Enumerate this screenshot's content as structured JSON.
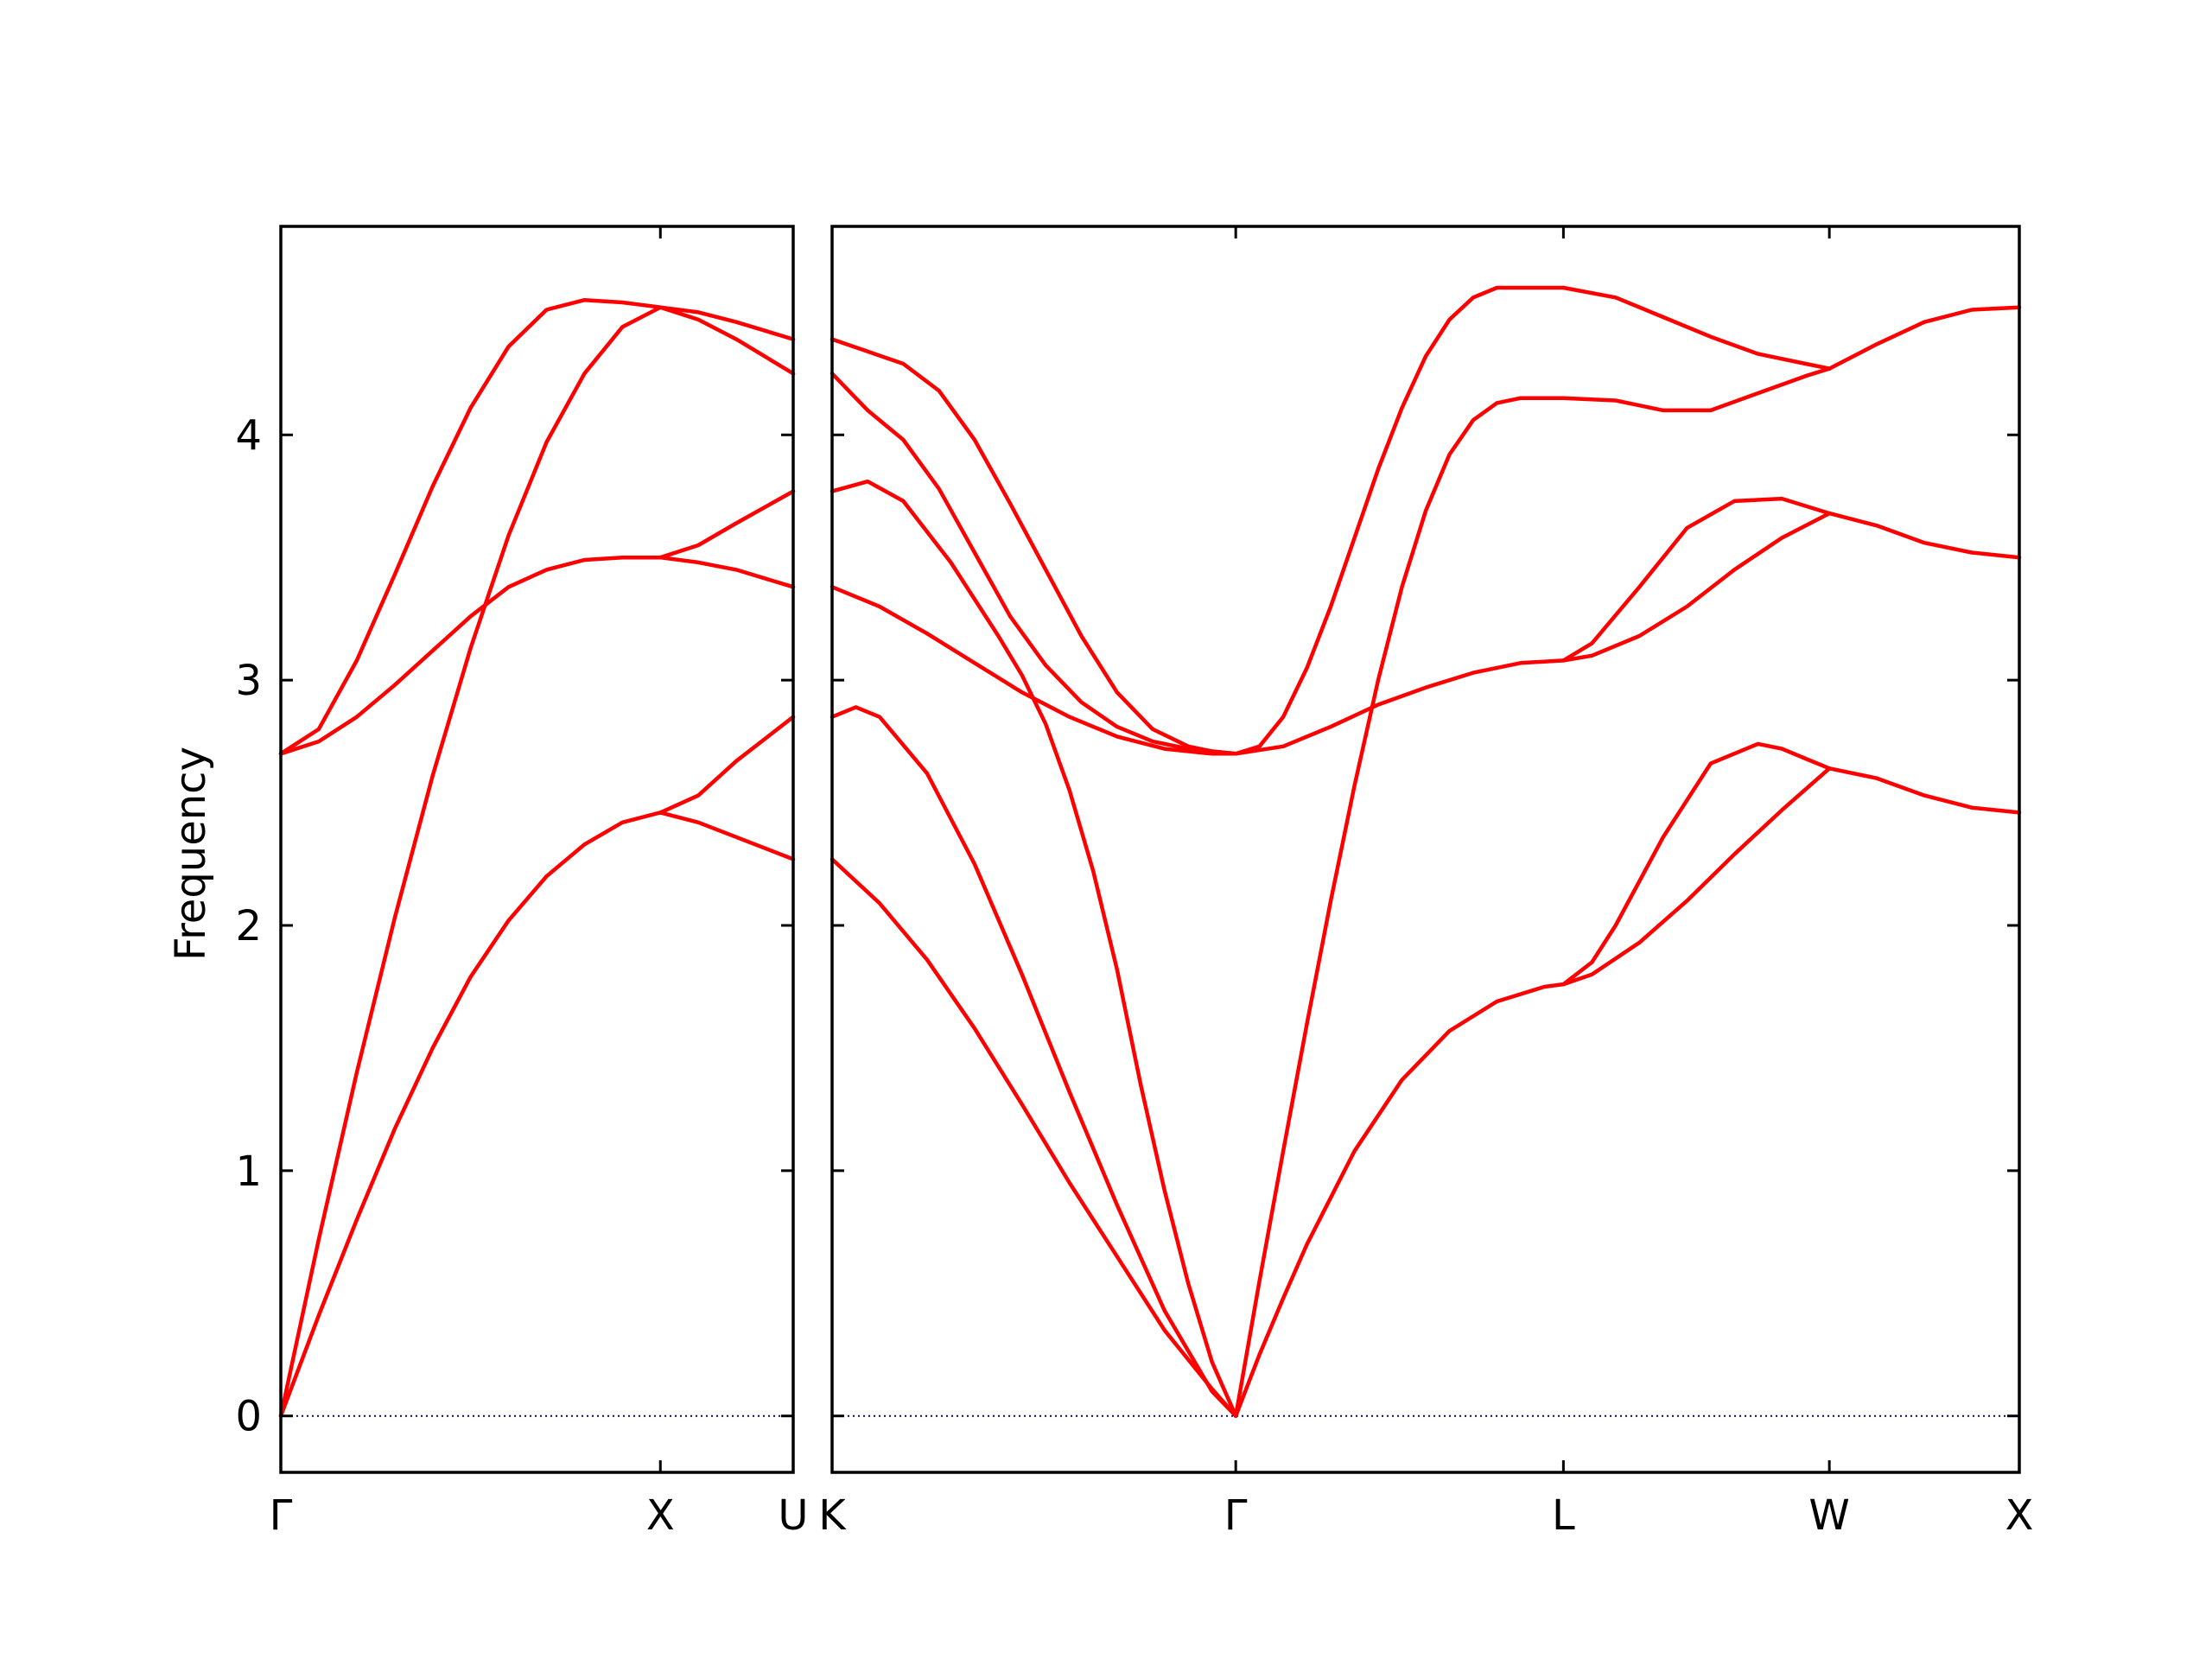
{
  "chart_data": {
    "type": "line",
    "title": "",
    "ylabel": "Frequency",
    "ylim": [
      -0.23,
      4.85
    ],
    "yticks": [
      0,
      1,
      2,
      3,
      4
    ],
    "grid": false,
    "colors": {
      "bands": "#ff0000",
      "zero_line": "#00008b",
      "frame": "#000000"
    },
    "panels": [
      {
        "name": "Γ-X-U",
        "xlim": [
          0,
          1.35
        ],
        "kpoints": [
          {
            "label": "Γ",
            "x": 0
          },
          {
            "label": "X",
            "x": 1.0
          },
          {
            "label": "U",
            "x": 1.35
          }
        ],
        "kpoint_label_text": "Γ X U",
        "series": [
          {
            "x": [
              0,
              0.1,
              0.2,
              0.3,
              0.4,
              0.5,
              0.6,
              0.7,
              0.8,
              0.9,
              1.0,
              1.1,
              1.2,
              1.35
            ],
            "y": [
              0,
              0.41,
              0.8,
              1.17,
              1.5,
              1.79,
              2.02,
              2.2,
              2.33,
              2.42,
              2.46,
              2.42,
              2.36,
              2.27
            ]
          },
          {
            "x": [
              0,
              0.1,
              0.2,
              0.3,
              0.4,
              0.5,
              0.6,
              0.7,
              0.8,
              0.9,
              1.0,
              1.1,
              1.2,
              1.35
            ],
            "y": [
              0,
              0.72,
              1.4,
              2.03,
              2.61,
              3.13,
              3.59,
              3.97,
              4.25,
              4.44,
              4.52,
              4.47,
              4.39,
              4.25
            ]
          },
          {
            "x": [
              0,
              0.1,
              0.2,
              0.3,
              0.4,
              0.5,
              0.6,
              0.7,
              0.8,
              0.9,
              1.0,
              1.1,
              1.2,
              1.35
            ],
            "y": [
              2.7,
              2.75,
              2.85,
              2.98,
              3.12,
              3.26,
              3.38,
              3.45,
              3.49,
              3.5,
              3.5,
              3.48,
              3.45,
              3.38
            ]
          },
          {
            "x": [
              0,
              0.1,
              0.2,
              0.3,
              0.4,
              0.5,
              0.6,
              0.7,
              0.8,
              0.9,
              0.95,
              1.0,
              1.1,
              1.2,
              1.35
            ],
            "y": [
              2.7,
              2.8,
              3.08,
              3.43,
              3.79,
              4.11,
              4.36,
              4.51,
              4.55,
              4.54,
              4.53,
              4.52,
              4.5,
              4.46,
              4.39
            ]
          },
          {
            "x": [
              1.0,
              1.1,
              1.2,
              1.35
            ],
            "y": [
              2.46,
              2.53,
              2.67,
              2.85
            ]
          },
          {
            "x": [
              1.0,
              1.1,
              1.2,
              1.35
            ],
            "y": [
              3.5,
              3.55,
              3.64,
              3.77
            ]
          }
        ]
      },
      {
        "name": "K-Γ-L-W-X",
        "xlim": [
          0,
          5.0
        ],
        "kpoints": [
          {
            "label": "K",
            "x": 0
          },
          {
            "label": "Γ",
            "x": 1.7
          },
          {
            "label": "L",
            "x": 3.08
          },
          {
            "label": "W",
            "x": 4.2
          },
          {
            "label": "X",
            "x": 5.0
          }
        ],
        "series": [
          {
            "x": [
              0,
              0.2,
              0.4,
              0.6,
              0.8,
              1.0,
              1.2,
              1.4,
              1.6,
              1.7
            ],
            "y": [
              2.27,
              2.09,
              1.86,
              1.58,
              1.27,
              0.95,
              0.65,
              0.35,
              0.11,
              0
            ]
          },
          {
            "x": [
              0,
              0.1,
              0.2,
              0.4,
              0.6,
              0.8,
              1.0,
              1.2,
              1.4,
              1.6,
              1.7
            ],
            "y": [
              2.85,
              2.89,
              2.85,
              2.62,
              2.25,
              1.8,
              1.32,
              0.86,
              0.43,
              0.1,
              0
            ]
          },
          {
            "x": [
              0,
              0.15,
              0.3,
              0.5,
              0.7,
              0.8,
              0.9,
              1.0,
              1.1,
              1.2,
              1.3,
              1.4,
              1.5,
              1.6,
              1.7
            ],
            "y": [
              3.77,
              3.81,
              3.73,
              3.48,
              3.18,
              3.02,
              2.82,
              2.55,
              2.22,
              1.82,
              1.35,
              0.92,
              0.54,
              0.22,
              0
            ]
          },
          {
            "x": [
              0,
              0.2,
              0.4,
              0.6,
              0.8,
              1.0,
              1.2,
              1.4,
              1.6,
              1.7,
              1.9,
              2.1,
              2.3,
              2.5,
              2.7,
              2.9,
              3.08
            ],
            "y": [
              3.38,
              3.3,
              3.19,
              3.07,
              2.95,
              2.85,
              2.77,
              2.72,
              2.7,
              2.7,
              2.73,
              2.81,
              2.9,
              2.97,
              3.03,
              3.07,
              3.08
            ]
          },
          {
            "x": [
              0,
              0.15,
              0.3,
              0.45,
              0.6,
              0.75,
              0.9,
              1.05,
              1.2,
              1.35,
              1.5,
              1.6,
              1.7
            ],
            "y": [
              4.25,
              4.1,
              3.98,
              3.78,
              3.52,
              3.26,
              3.06,
              2.91,
              2.81,
              2.75,
              2.72,
              2.71,
              2.7
            ]
          },
          {
            "x": [
              0,
              0.15,
              0.3,
              0.45,
              0.6,
              0.75,
              0.9,
              1.05,
              1.2,
              1.35,
              1.5,
              1.6,
              1.7
            ],
            "y": [
              4.39,
              4.34,
              4.29,
              4.18,
              3.98,
              3.72,
              3.45,
              3.18,
              2.95,
              2.8,
              2.73,
              2.71,
              2.7
            ]
          },
          {
            "x": [
              1.7,
              1.8,
              1.9,
              2.0,
              2.2,
              2.4,
              2.6,
              2.8,
              3.0,
              3.08
            ],
            "y": [
              0,
              0.25,
              0.48,
              0.7,
              1.08,
              1.37,
              1.57,
              1.69,
              1.75,
              1.76
            ]
          },
          {
            "x": [
              1.7,
              1.8,
              1.9,
              2.0,
              2.1,
              2.2,
              2.3,
              2.4,
              2.5,
              2.6,
              2.7,
              2.8,
              2.9,
              3.0,
              3.08
            ],
            "y": [
              0,
              0.55,
              1.08,
              1.6,
              2.1,
              2.57,
              3.0,
              3.38,
              3.69,
              3.92,
              4.06,
              4.13,
              4.15,
              4.15,
              4.15
            ]
          },
          {
            "x": [
              1.7,
              1.8,
              1.9,
              2.0,
              2.1,
              2.2,
              2.3,
              2.4,
              2.5,
              2.6,
              2.7,
              2.8,
              2.9,
              3.0,
              3.08
            ],
            "y": [
              2.7,
              2.73,
              2.85,
              3.05,
              3.3,
              3.58,
              3.86,
              4.11,
              4.32,
              4.47,
              4.56,
              4.6,
              4.6,
              4.6,
              4.6
            ]
          },
          {
            "x": [
              3.08,
              3.2,
              3.4,
              3.6,
              3.8,
              4.0,
              4.2
            ],
            "y": [
              1.76,
              1.8,
              1.93,
              2.1,
              2.29,
              2.47,
              2.64
            ]
          },
          {
            "x": [
              3.08,
              3.2,
              3.3,
              3.5,
              3.7,
              3.9,
              4.0,
              4.1,
              4.2
            ],
            "y": [
              1.76,
              1.85,
              2.0,
              2.36,
              2.66,
              2.74,
              2.72,
              2.68,
              2.64
            ]
          },
          {
            "x": [
              3.08,
              3.2,
              3.4,
              3.6,
              3.8,
              4.0,
              4.2
            ],
            "y": [
              3.08,
              3.1,
              3.18,
              3.3,
              3.45,
              3.58,
              3.68
            ]
          },
          {
            "x": [
              3.08,
              3.2,
              3.4,
              3.6,
              3.8,
              4.0,
              4.2
            ],
            "y": [
              3.08,
              3.15,
              3.38,
              3.62,
              3.73,
              3.74,
              3.68
            ]
          },
          {
            "x": [
              3.08,
              3.3,
              3.5,
              3.7,
              3.9,
              4.1,
              4.2
            ],
            "y": [
              4.15,
              4.14,
              4.1,
              4.1,
              4.17,
              4.24,
              4.27
            ]
          },
          {
            "x": [
              3.08,
              3.3,
              3.5,
              3.7,
              3.9,
              4.1,
              4.2
            ],
            "y": [
              4.6,
              4.56,
              4.48,
              4.4,
              4.33,
              4.29,
              4.27
            ]
          },
          {
            "x": [
              4.2,
              4.4,
              4.6,
              4.8,
              5.0
            ],
            "y": [
              2.64,
              2.6,
              2.53,
              2.48,
              2.46
            ]
          },
          {
            "x": [
              4.2,
              4.4,
              4.6,
              4.8,
              5.0
            ],
            "y": [
              3.68,
              3.63,
              3.56,
              3.52,
              3.5
            ]
          },
          {
            "x": [
              4.2,
              4.4,
              4.6,
              4.8,
              5.0
            ],
            "y": [
              4.27,
              4.37,
              4.46,
              4.51,
              4.52
            ]
          }
        ]
      }
    ]
  }
}
